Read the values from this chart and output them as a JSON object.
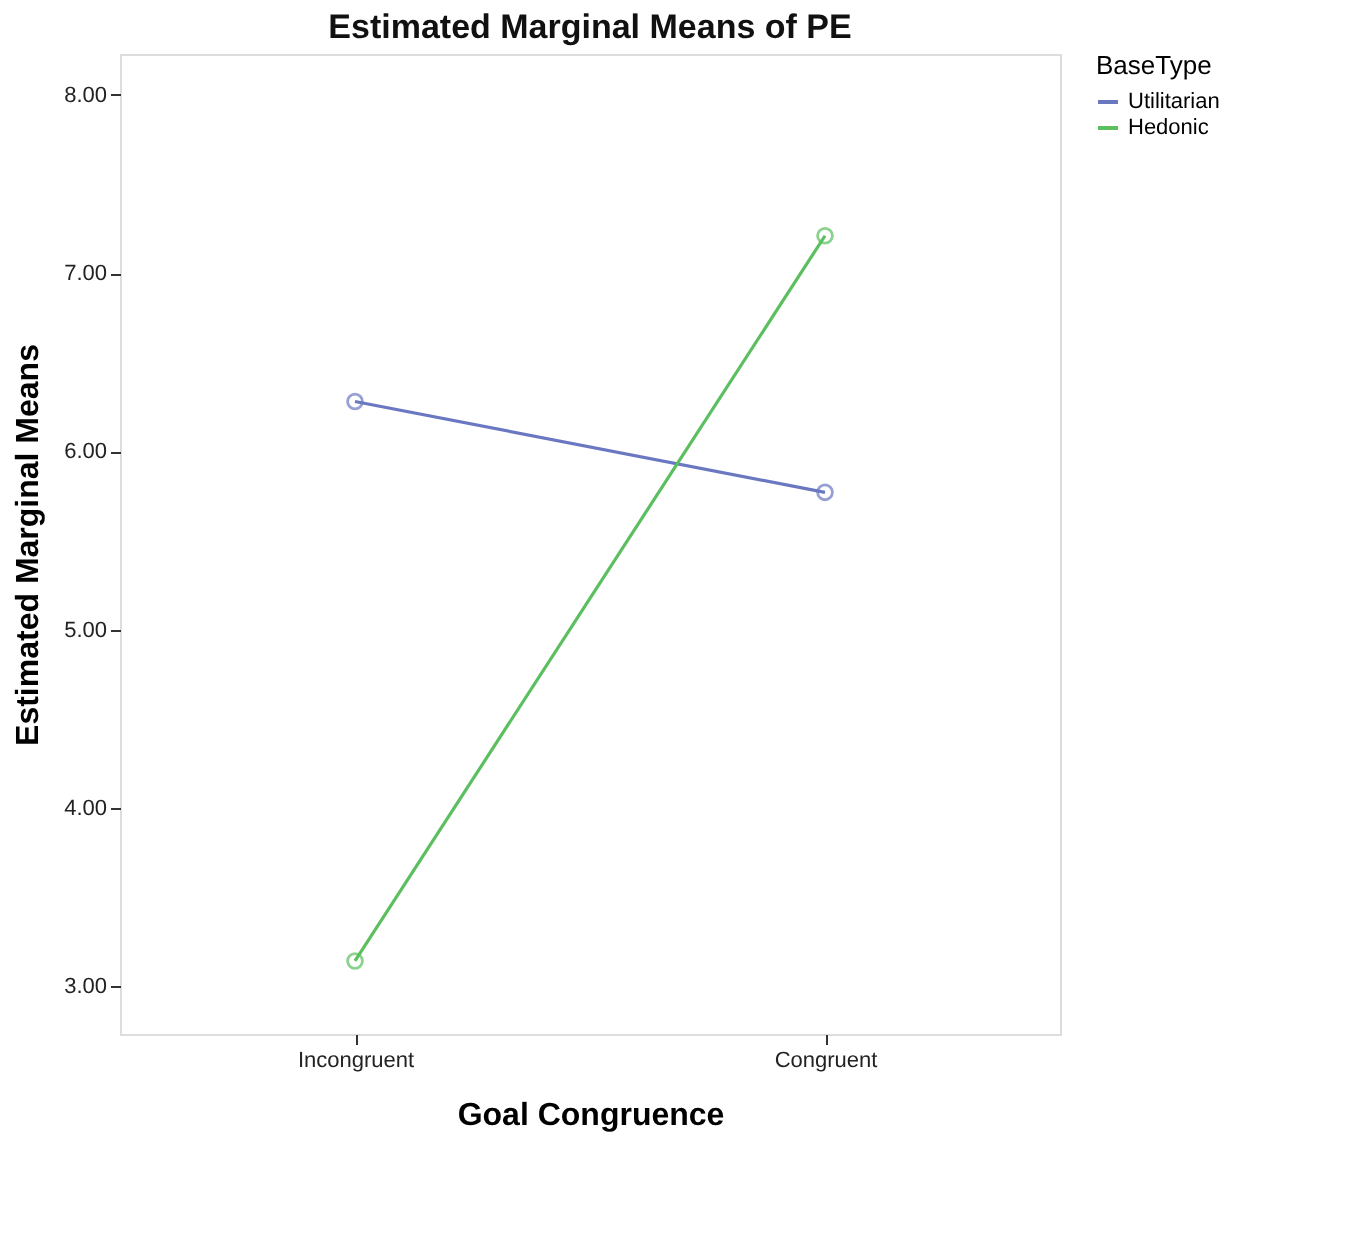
{
  "chart_data": {
    "type": "line",
    "title": "Estimated Marginal Means of PE",
    "xlabel": "Goal Congruence",
    "ylabel": "Estimated Marginal Means",
    "legend_title": "BaseType",
    "categories": [
      "Incongruent",
      "Congruent"
    ],
    "series": [
      {
        "name": "Utilitarian",
        "color": "#6a78c2",
        "values": [
          6.28,
          5.77
        ]
      },
      {
        "name": "Hedonic",
        "color": "#5bbf5f",
        "values": [
          3.14,
          7.21
        ]
      }
    ],
    "ylim": [
      2.73,
      8.23
    ],
    "yticks": [
      {
        "value": 3,
        "label": "3.00"
      },
      {
        "value": 4,
        "label": "4.00"
      },
      {
        "value": 5,
        "label": "5.00"
      },
      {
        "value": 6,
        "label": "6.00"
      },
      {
        "value": 7,
        "label": "7.00"
      },
      {
        "value": 8,
        "label": "8.00"
      }
    ],
    "grid": false,
    "legend": "top right",
    "marker": "circle",
    "line_style": "solid"
  }
}
